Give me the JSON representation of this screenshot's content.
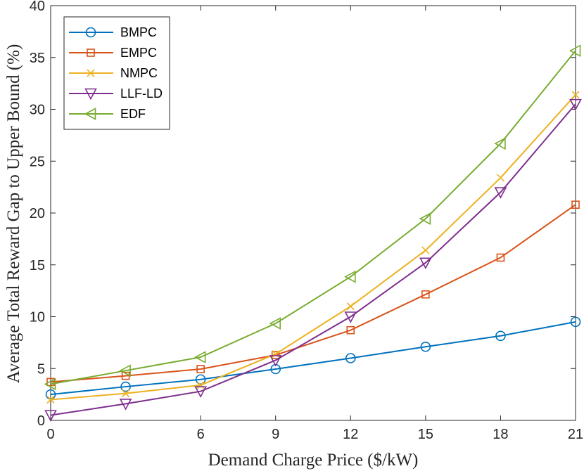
{
  "chart_data": {
    "type": "line",
    "xlabel": "Demand Charge Price ($/kW)",
    "ylabel": "Average Total Reward Gap to Upper Bound (%)",
    "x": [
      0,
      3,
      6,
      9,
      12,
      15,
      18,
      21
    ],
    "xticks": [
      0,
      6,
      9,
      12,
      15,
      18,
      21
    ],
    "xlim": [
      0,
      21
    ],
    "ylim": [
      0,
      40
    ],
    "yticks": [
      0,
      5,
      10,
      15,
      20,
      25,
      30,
      35,
      40
    ],
    "legend_position": "top-left",
    "grid": false,
    "series": [
      {
        "name": "BMPC",
        "color": "#0072BD",
        "marker": "circle",
        "values": [
          2.5,
          3.25,
          3.95,
          4.95,
          6.0,
          7.1,
          8.15,
          9.5
        ]
      },
      {
        "name": "EMPC",
        "color": "#D95319",
        "marker": "square",
        "values": [
          3.7,
          4.3,
          4.95,
          6.3,
          8.7,
          12.15,
          15.7,
          20.8
        ]
      },
      {
        "name": "NMPC",
        "color": "#EDB120",
        "marker": "x",
        "values": [
          2.0,
          2.6,
          3.4,
          6.4,
          11.0,
          16.4,
          23.4,
          31.4
        ]
      },
      {
        "name": "LLF-LD",
        "color": "#7E2F8E",
        "marker": "triangle-down",
        "values": [
          0.5,
          1.6,
          2.8,
          5.8,
          10.0,
          15.2,
          22.0,
          30.5
        ]
      },
      {
        "name": "EDF",
        "color": "#77AC30",
        "marker": "triangle-left",
        "values": [
          3.5,
          4.8,
          6.1,
          9.35,
          13.85,
          19.45,
          26.7,
          35.65
        ]
      }
    ]
  }
}
